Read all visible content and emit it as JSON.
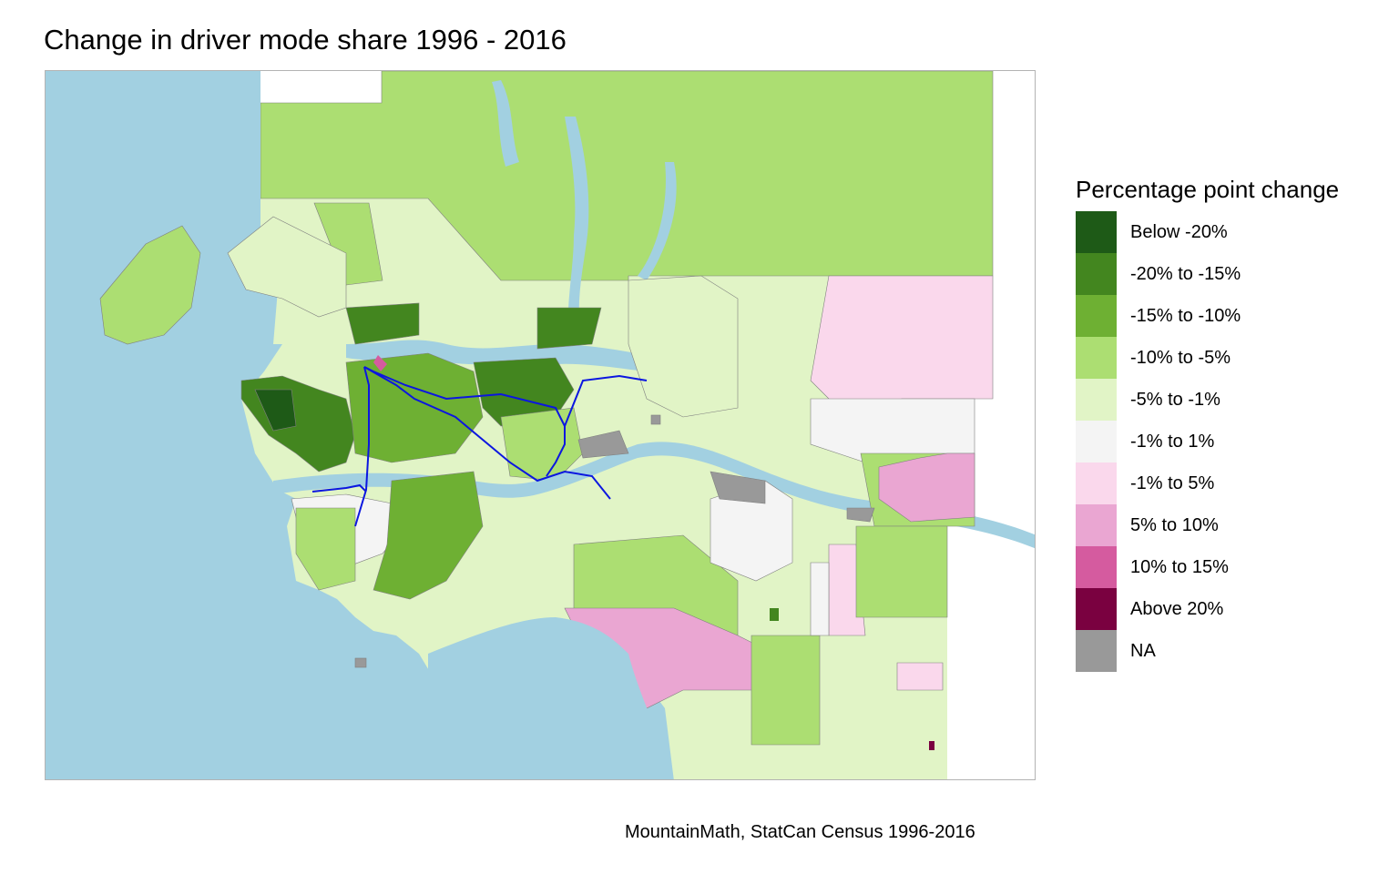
{
  "title": "Change in driver mode share 1996 - 2016",
  "caption": "MountainMath, StatCan Census 1996-2016",
  "legend": {
    "title": "Percentage point change",
    "items": [
      {
        "label": "Below -20%",
        "color": "#1e5a17"
      },
      {
        "label": "-20% to -15%",
        "color": "#43861f"
      },
      {
        "label": "-15% to -10%",
        "color": "#6eb033"
      },
      {
        "label": "-10% to -5%",
        "color": "#acde72"
      },
      {
        "label": "-5% to -1%",
        "color": "#e1f4c6"
      },
      {
        "label": "-1% to 1%",
        "color": "#f4f4f4"
      },
      {
        "label": "-1% to 5%",
        "color": "#fad8ec"
      },
      {
        "label": "5% to 10%",
        "color": "#eaa6d2"
      },
      {
        "label": "10% to 15%",
        "color": "#d55b9f"
      },
      {
        "label": "Above 20%",
        "color": "#7a0140"
      },
      {
        "label": "NA",
        "color": "#999999"
      }
    ]
  },
  "colors": {
    "water": "#a2d0e1",
    "transit_lines": "#0b16e0",
    "boundary": "#7f7f7f"
  }
}
